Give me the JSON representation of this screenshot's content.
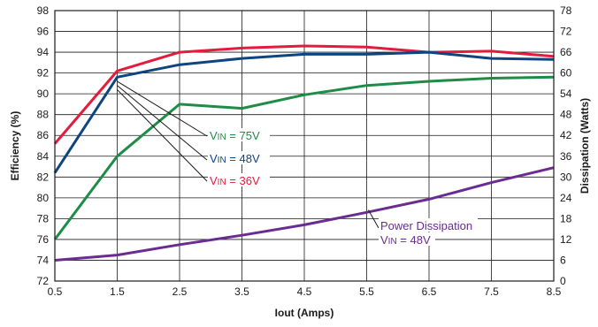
{
  "chart_data": {
    "type": "line",
    "xlabel": "Iout (Amps)",
    "ylabel": "Efficiency (%)",
    "y2label": "Dissipation (Watts)",
    "x": [
      0.5,
      1.5,
      2.5,
      3.5,
      4.5,
      5.5,
      6.5,
      7.5,
      8.5
    ],
    "xlim": [
      0.5,
      8.5
    ],
    "ylim": [
      72,
      98
    ],
    "y2lim": [
      0,
      78
    ],
    "grid": true,
    "x_ticks": [
      "0.5",
      "1.5",
      "2.5",
      "3.5",
      "4.5",
      "5.5",
      "6.5",
      "7.5",
      "8.5"
    ],
    "y_ticks": [
      "72",
      "74",
      "76",
      "78",
      "80",
      "82",
      "84",
      "86",
      "88",
      "90",
      "92",
      "94",
      "96",
      "98"
    ],
    "y2_ticks": [
      "0",
      "6",
      "12",
      "18",
      "24",
      "30",
      "36",
      "42",
      "48",
      "54",
      "60",
      "66",
      "72",
      "78"
    ],
    "series": [
      {
        "name": "VIN = 36V",
        "axis": "left",
        "color": "#e31b3c",
        "values": [
          85.2,
          92.2,
          94.0,
          94.4,
          94.6,
          94.5,
          94.0,
          94.1,
          93.6
        ],
        "label_parts": [
          "V",
          "IN",
          " = 36V"
        ]
      },
      {
        "name": "VIN = 48V",
        "axis": "left",
        "color": "#0e4480",
        "values": [
          82.4,
          91.6,
          92.8,
          93.4,
          93.8,
          93.8,
          94.0,
          93.4,
          93.3
        ],
        "label_parts": [
          "V",
          "IN",
          " = 48V"
        ]
      },
      {
        "name": "VIN = 75V",
        "axis": "left",
        "color": "#1e8c47",
        "values": [
          76.0,
          84.0,
          89.0,
          88.6,
          89.9,
          90.8,
          91.2,
          91.5,
          91.6
        ],
        "label_parts": [
          "V",
          "IN",
          " = 75V"
        ]
      },
      {
        "name": "Power Dissipation VIN = 48V",
        "axis": "right",
        "color": "#6b2c91",
        "values": [
          6.0,
          7.5,
          10.5,
          13.2,
          16.2,
          19.8,
          23.6,
          28.4,
          32.7
        ],
        "label_line1": "Power Dissipation",
        "label_parts": [
          "V",
          "IN",
          " = 48V"
        ]
      }
    ]
  }
}
